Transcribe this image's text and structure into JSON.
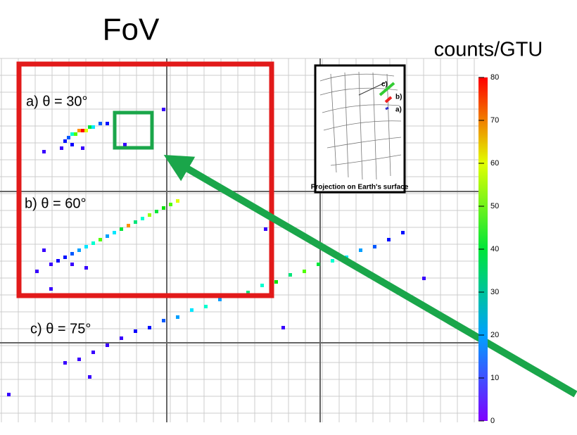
{
  "chart_data": {
    "type": "heatmap",
    "title": "FoV",
    "colorbar_label": "counts/GTU",
    "zlim": [
      0,
      80
    ],
    "zticks": [
      0,
      10,
      20,
      30,
      40,
      50,
      60,
      70,
      80
    ],
    "panels": [
      "a) θ = 30°",
      "b) θ = 60°",
      "c) θ = 75°"
    ],
    "inset": {
      "title": "Projection on Earth's surface",
      "labels": [
        "c)",
        "b)",
        "a)"
      ]
    },
    "tracks": [
      {
        "name": "a)",
        "hits": [
          [
            23,
            20,
            80
          ],
          [
            22,
            20,
            70
          ],
          [
            24,
            20,
            60
          ],
          [
            21,
            21,
            50
          ],
          [
            20,
            21,
            30
          ],
          [
            25,
            19,
            40
          ],
          [
            26,
            19,
            25
          ],
          [
            28,
            18,
            15
          ],
          [
            30,
            18,
            10
          ],
          [
            19,
            22,
            15
          ],
          [
            18,
            23,
            10
          ],
          [
            20,
            24,
            8
          ],
          [
            23,
            25,
            5
          ],
          [
            17,
            25,
            5
          ],
          [
            12,
            26,
            5
          ],
          [
            35,
            24,
            5
          ],
          [
            46,
            14,
            5
          ]
        ]
      },
      {
        "name": "b)",
        "hits": [
          [
            50,
            40,
            60
          ],
          [
            48,
            41,
            50
          ],
          [
            46,
            42,
            45
          ],
          [
            44,
            43,
            40
          ],
          [
            42,
            44,
            55
          ],
          [
            40,
            45,
            30
          ],
          [
            38,
            46,
            35
          ],
          [
            36,
            47,
            70
          ],
          [
            34,
            48,
            40
          ],
          [
            32,
            49,
            25
          ],
          [
            30,
            50,
            20
          ],
          [
            28,
            51,
            50
          ],
          [
            26,
            52,
            30
          ],
          [
            24,
            53,
            25
          ],
          [
            22,
            54,
            20
          ],
          [
            20,
            55,
            15
          ],
          [
            18,
            56,
            10
          ],
          [
            16,
            57,
            8
          ],
          [
            14,
            58,
            5
          ],
          [
            20,
            58,
            5
          ],
          [
            24,
            59,
            5
          ],
          [
            12,
            54,
            5
          ],
          [
            10,
            60,
            5
          ],
          [
            75,
            48,
            5
          ],
          [
            14,
            65,
            5
          ]
        ]
      },
      {
        "name": "c)",
        "hits": [
          [
            114,
            49,
            10
          ],
          [
            110,
            51,
            10
          ],
          [
            106,
            53,
            15
          ],
          [
            102,
            54,
            20
          ],
          [
            98,
            56,
            25
          ],
          [
            94,
            57,
            30
          ],
          [
            90,
            58,
            40
          ],
          [
            86,
            60,
            50
          ],
          [
            82,
            61,
            35
          ],
          [
            78,
            63,
            45
          ],
          [
            74,
            64,
            30
          ],
          [
            70,
            66,
            35
          ],
          [
            66,
            67,
            25
          ],
          [
            62,
            68,
            20
          ],
          [
            58,
            70,
            30
          ],
          [
            54,
            71,
            25
          ],
          [
            50,
            73,
            20
          ],
          [
            46,
            74,
            15
          ],
          [
            42,
            76,
            10
          ],
          [
            38,
            77,
            8
          ],
          [
            34,
            79,
            5
          ],
          [
            30,
            81,
            5
          ],
          [
            26,
            83,
            5
          ],
          [
            22,
            85,
            5
          ],
          [
            18,
            86,
            5
          ],
          [
            25,
            90,
            5
          ],
          [
            80,
            76,
            5
          ],
          [
            120,
            62,
            5
          ],
          [
            2,
            95,
            5
          ]
        ]
      }
    ]
  }
}
